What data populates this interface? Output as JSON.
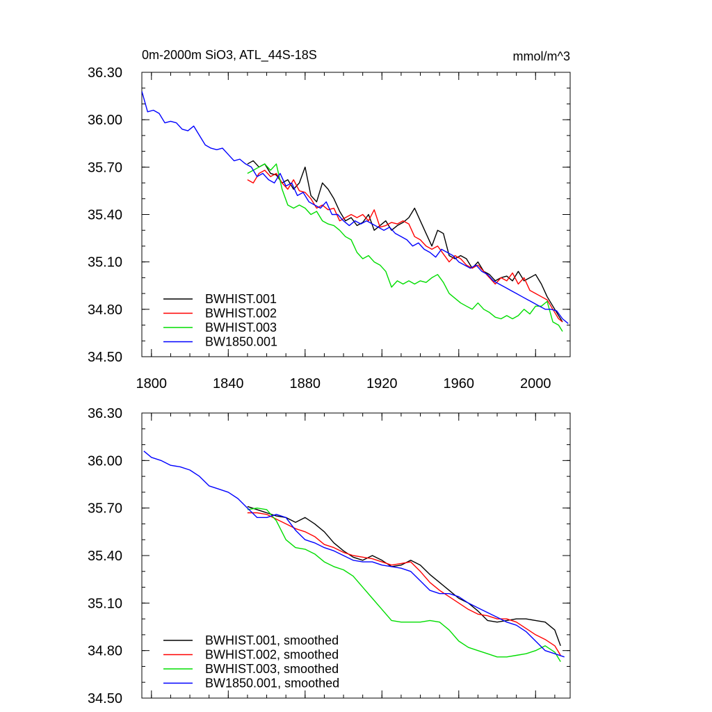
{
  "chart_data": [
    {
      "type": "line",
      "title": "0m-2000m SiO3, ATL_44S-18S",
      "units": "mmol/m^3",
      "xlim": [
        1795,
        2018
      ],
      "ylim": [
        34.5,
        36.3
      ],
      "x_ticks": [
        1800,
        1840,
        1880,
        1920,
        1960,
        2000
      ],
      "x_tick_labels": [
        "1800",
        "1840",
        "1880",
        "1920",
        "1960",
        "2000"
      ],
      "y_ticks": [
        34.5,
        34.8,
        35.1,
        35.4,
        35.7,
        36.0,
        36.3
      ],
      "y_tick_labels": [
        "34.50",
        "34.80",
        "35.10",
        "35.40",
        "35.70",
        "36.00",
        "36.30"
      ],
      "grid": false,
      "legend_position": "bottom-left",
      "series": [
        {
          "name": "BWHIST.001",
          "color": "#000000",
          "x": [
            1850,
            1853,
            1856,
            1859,
            1862,
            1865,
            1868,
            1871,
            1874,
            1877,
            1880,
            1883,
            1886,
            1889,
            1892,
            1895,
            1898,
            1901,
            1904,
            1907,
            1910,
            1913,
            1916,
            1919,
            1922,
            1925,
            1928,
            1931,
            1934,
            1937,
            1940,
            1943,
            1946,
            1949,
            1952,
            1955,
            1958,
            1961,
            1964,
            1967,
            1970,
            1973,
            1976,
            1979,
            1982,
            1985,
            1988,
            1991,
            1994,
            1997,
            2000,
            2003,
            2006,
            2009,
            2012,
            2014
          ],
          "y": [
            35.72,
            35.74,
            35.7,
            35.72,
            35.66,
            35.65,
            35.6,
            35.62,
            35.56,
            35.6,
            35.7,
            35.52,
            35.48,
            35.6,
            35.56,
            35.5,
            35.42,
            35.36,
            35.38,
            35.33,
            35.35,
            35.4,
            35.3,
            35.33,
            35.36,
            35.3,
            35.33,
            35.35,
            35.38,
            35.44,
            35.36,
            35.28,
            35.2,
            35.3,
            35.28,
            35.14,
            35.12,
            35.14,
            35.12,
            35.06,
            35.1,
            35.04,
            35.02,
            34.98,
            35.0,
            35.01,
            34.98,
            35.04,
            34.98,
            35.0,
            35.02,
            34.96,
            34.88,
            34.82,
            34.76,
            34.72
          ]
        },
        {
          "name": "BWHIST.002",
          "color": "#ff0000",
          "x": [
            1850,
            1853,
            1856,
            1859,
            1862,
            1865,
            1868,
            1871,
            1874,
            1877,
            1880,
            1883,
            1886,
            1889,
            1892,
            1895,
            1898,
            1901,
            1904,
            1907,
            1910,
            1913,
            1916,
            1919,
            1922,
            1925,
            1928,
            1931,
            1934,
            1937,
            1940,
            1943,
            1946,
            1949,
            1952,
            1955,
            1958,
            1961,
            1964,
            1967,
            1970,
            1973,
            1976,
            1979,
            1982,
            1985,
            1988,
            1991,
            1994,
            1997,
            2000,
            2003,
            2006,
            2009,
            2012,
            2014
          ],
          "y": [
            35.62,
            35.6,
            35.66,
            35.68,
            35.64,
            35.66,
            35.6,
            35.56,
            35.62,
            35.55,
            35.54,
            35.5,
            35.44,
            35.46,
            35.43,
            35.44,
            35.36,
            35.38,
            35.4,
            35.38,
            35.4,
            35.36,
            35.43,
            35.32,
            35.33,
            35.35,
            35.34,
            35.36,
            35.34,
            35.26,
            35.24,
            35.2,
            35.18,
            35.2,
            35.15,
            35.1,
            35.14,
            35.12,
            35.08,
            35.06,
            35.08,
            35.04,
            35.0,
            34.96,
            35.0,
            34.98,
            35.03,
            34.96,
            35.0,
            34.92,
            34.9,
            34.88,
            34.86,
            34.8,
            34.74,
            34.72
          ]
        },
        {
          "name": "BWHIST.003",
          "color": "#00dd00",
          "x": [
            1850,
            1853,
            1856,
            1859,
            1862,
            1865,
            1868,
            1871,
            1874,
            1877,
            1880,
            1883,
            1886,
            1889,
            1892,
            1895,
            1898,
            1901,
            1904,
            1907,
            1910,
            1913,
            1916,
            1919,
            1922,
            1925,
            1928,
            1931,
            1934,
            1937,
            1940,
            1943,
            1946,
            1949,
            1952,
            1955,
            1958,
            1961,
            1964,
            1967,
            1970,
            1973,
            1976,
            1979,
            1982,
            1985,
            1988,
            1991,
            1994,
            1997,
            2000,
            2003,
            2006,
            2009,
            2012,
            2014
          ],
          "y": [
            35.66,
            35.68,
            35.7,
            35.72,
            35.68,
            35.72,
            35.56,
            35.46,
            35.44,
            35.46,
            35.44,
            35.4,
            35.42,
            35.36,
            35.34,
            35.33,
            35.3,
            35.26,
            35.24,
            35.16,
            35.12,
            35.14,
            35.1,
            35.08,
            35.04,
            34.94,
            34.98,
            34.96,
            34.98,
            34.96,
            34.98,
            34.97,
            35.0,
            35.02,
            34.97,
            34.9,
            34.87,
            34.84,
            34.82,
            34.8,
            34.84,
            34.8,
            34.78,
            34.75,
            34.74,
            34.76,
            34.74,
            34.76,
            34.8,
            34.77,
            34.82,
            34.82,
            34.85,
            34.72,
            34.7,
            34.66
          ]
        },
        {
          "name": "BW1850.001",
          "color": "#0000ff",
          "x": [
            1795,
            1798,
            1801,
            1804,
            1807,
            1810,
            1813,
            1816,
            1819,
            1822,
            1825,
            1828,
            1831,
            1834,
            1837,
            1840,
            1843,
            1846,
            1849,
            1852,
            1855,
            1858,
            1861,
            1864,
            1867,
            1870,
            1873,
            1876,
            1879,
            1882,
            1885,
            1888,
            1891,
            1894,
            1897,
            1900,
            1903,
            1906,
            1909,
            1912,
            1915,
            1918,
            1921,
            1924,
            1927,
            1930,
            1933,
            1936,
            1939,
            1942,
            1945,
            1948,
            1951,
            1954,
            1957,
            1960,
            1963,
            1966,
            1969,
            1972,
            1975,
            1978,
            1981,
            1984,
            1987,
            1990,
            1993,
            1996,
            1999,
            2002,
            2005,
            2008,
            2011,
            2014,
            2017
          ],
          "y": [
            36.18,
            36.05,
            36.06,
            36.04,
            35.98,
            35.99,
            35.98,
            35.94,
            35.93,
            35.96,
            35.9,
            35.84,
            35.82,
            35.81,
            35.82,
            35.78,
            35.74,
            35.75,
            35.72,
            35.7,
            35.64,
            35.66,
            35.62,
            35.6,
            35.66,
            35.58,
            35.6,
            35.52,
            35.54,
            35.48,
            35.46,
            35.44,
            35.48,
            35.4,
            35.4,
            35.36,
            35.33,
            35.36,
            35.34,
            35.36,
            35.34,
            35.32,
            35.3,
            35.32,
            35.28,
            35.26,
            35.24,
            35.2,
            35.22,
            35.18,
            35.16,
            35.13,
            35.18,
            35.16,
            35.14,
            35.1,
            35.08,
            35.06,
            35.08,
            35.04,
            35.02,
            34.98,
            34.96,
            34.94,
            34.92,
            34.9,
            34.88,
            34.86,
            34.84,
            34.82,
            34.8,
            34.8,
            34.79,
            34.74,
            34.71
          ]
        }
      ]
    },
    {
      "type": "line",
      "title": "",
      "xlim": [
        1795,
        2018
      ],
      "ylim": [
        34.5,
        36.3
      ],
      "y_ticks": [
        34.5,
        34.8,
        35.1,
        35.4,
        35.7,
        36.0,
        36.3
      ],
      "y_tick_labels": [
        "34.50",
        "34.80",
        "35.10",
        "35.40",
        "35.70",
        "36.00",
        "36.30"
      ],
      "x_ticks": [
        1800,
        1840,
        1880,
        1920,
        1960,
        2000
      ],
      "grid": false,
      "legend_position": "bottom-left",
      "series": [
        {
          "name": "BWHIST.001, smoothed",
          "color": "#000000",
          "x": [
            1850,
            1855,
            1860,
            1865,
            1870,
            1875,
            1880,
            1885,
            1890,
            1895,
            1900,
            1905,
            1910,
            1915,
            1920,
            1925,
            1930,
            1935,
            1940,
            1945,
            1950,
            1955,
            1960,
            1965,
            1970,
            1975,
            1980,
            1985,
            1990,
            1995,
            2000,
            2005,
            2010,
            2013
          ],
          "y": [
            35.71,
            35.69,
            35.67,
            35.65,
            35.64,
            35.61,
            35.64,
            35.6,
            35.55,
            35.48,
            35.43,
            35.39,
            35.37,
            35.4,
            35.37,
            35.33,
            35.34,
            35.37,
            35.34,
            35.28,
            35.23,
            35.18,
            35.13,
            35.1,
            35.05,
            34.99,
            34.98,
            34.99,
            35.0,
            35.0,
            34.99,
            34.98,
            34.93,
            34.83
          ]
        },
        {
          "name": "BWHIST.002, smoothed",
          "color": "#ff0000",
          "x": [
            1850,
            1855,
            1860,
            1865,
            1870,
            1875,
            1880,
            1885,
            1890,
            1895,
            1900,
            1905,
            1910,
            1915,
            1920,
            1925,
            1930,
            1935,
            1940,
            1945,
            1950,
            1955,
            1960,
            1965,
            1970,
            1975,
            1980,
            1985,
            1990,
            1995,
            2000,
            2005,
            2010,
            2013
          ],
          "y": [
            35.67,
            35.67,
            35.66,
            35.63,
            35.6,
            35.57,
            35.55,
            35.52,
            35.47,
            35.45,
            35.42,
            35.4,
            35.39,
            35.38,
            35.36,
            35.34,
            35.35,
            35.36,
            35.3,
            35.23,
            35.18,
            35.14,
            35.1,
            35.06,
            35.03,
            35.02,
            35.0,
            35.0,
            34.98,
            34.94,
            34.9,
            34.87,
            34.83,
            34.77
          ]
        },
        {
          "name": "BWHIST.003, smoothed",
          "color": "#00dd00",
          "x": [
            1850,
            1855,
            1860,
            1865,
            1870,
            1875,
            1880,
            1885,
            1890,
            1895,
            1900,
            1905,
            1910,
            1915,
            1920,
            1925,
            1930,
            1935,
            1940,
            1945,
            1950,
            1955,
            1960,
            1965,
            1970,
            1975,
            1980,
            1985,
            1990,
            1995,
            2000,
            2005,
            2010,
            2013
          ],
          "y": [
            35.69,
            35.7,
            35.69,
            35.62,
            35.5,
            35.45,
            35.44,
            35.41,
            35.36,
            35.33,
            35.31,
            35.27,
            35.2,
            35.13,
            35.06,
            34.99,
            34.98,
            34.98,
            34.98,
            34.99,
            34.98,
            34.93,
            34.86,
            34.82,
            34.8,
            34.78,
            34.76,
            34.76,
            34.77,
            34.78,
            34.8,
            34.83,
            34.79,
            34.73
          ]
        },
        {
          "name": "BW1850.001, smoothed",
          "color": "#0000ff",
          "x": [
            1796,
            1800,
            1805,
            1810,
            1815,
            1820,
            1825,
            1830,
            1835,
            1840,
            1845,
            1850,
            1855,
            1860,
            1865,
            1870,
            1875,
            1880,
            1885,
            1890,
            1895,
            1900,
            1905,
            1910,
            1915,
            1920,
            1925,
            1930,
            1935,
            1940,
            1945,
            1950,
            1955,
            1960,
            1965,
            1970,
            1975,
            1980,
            1985,
            1990,
            1995,
            2000,
            2005,
            2010,
            2015
          ],
          "y": [
            36.06,
            36.02,
            36.0,
            35.97,
            35.96,
            35.94,
            35.9,
            35.84,
            35.82,
            35.8,
            35.76,
            35.7,
            35.64,
            35.64,
            35.66,
            35.64,
            35.56,
            35.5,
            35.48,
            35.45,
            35.43,
            35.4,
            35.37,
            35.36,
            35.36,
            35.34,
            35.33,
            35.32,
            35.3,
            35.24,
            35.18,
            35.16,
            35.16,
            35.14,
            35.1,
            35.07,
            35.04,
            35.01,
            34.98,
            34.96,
            34.92,
            34.86,
            34.8,
            34.78,
            34.76
          ]
        }
      ]
    }
  ]
}
